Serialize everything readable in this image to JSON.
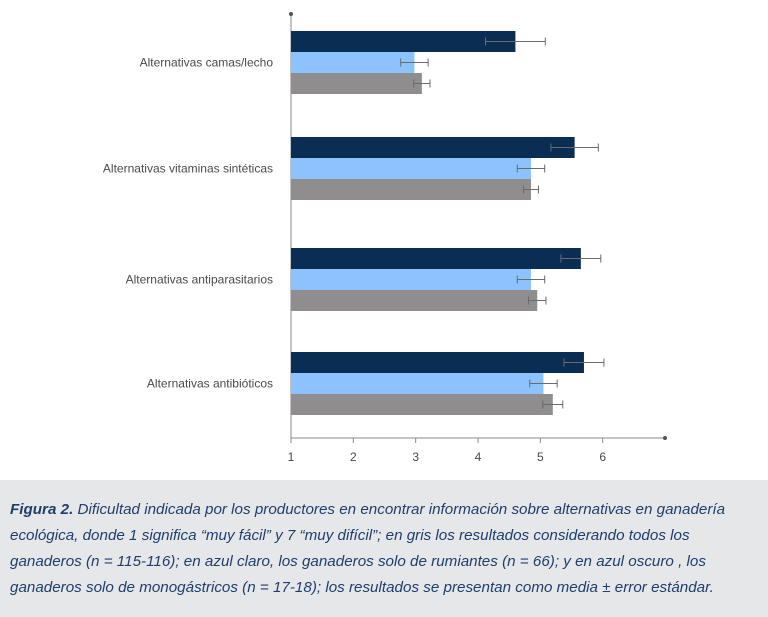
{
  "chart_data": {
    "type": "bar",
    "orientation": "horizontal",
    "title": "",
    "xlabel": "",
    "ylabel": "",
    "xlim": [
      1,
      7
    ],
    "x_ticks": [
      1,
      2,
      3,
      4,
      5,
      6
    ],
    "grid": false,
    "legend": "none",
    "categories": [
      "Alternativas camas/lecho",
      "Alternativas vitaminas sintéticas",
      "Alternativas antiparasitarios",
      "Alternativas antibióticos"
    ],
    "series": [
      {
        "color": "#0a2d54",
        "values": [
          4.6,
          5.55,
          5.65,
          5.7
        ],
        "errors": [
          0.48,
          0.38,
          0.32,
          0.32
        ]
      },
      {
        "color": "#8cc3ff",
        "values": [
          2.98,
          4.85,
          4.85,
          5.05
        ],
        "errors": [
          0.22,
          0.22,
          0.22,
          0.22
        ]
      },
      {
        "color": "#8f8d8e",
        "values": [
          3.1,
          4.85,
          4.95,
          5.2
        ],
        "errors": [
          0.13,
          0.12,
          0.14,
          0.16
        ]
      }
    ]
  },
  "caption": {
    "label": "Figura 2.",
    "text": "Dificultad indicada por los productores en encontrar información sobre alternativas en ganadería ecológica, donde 1 significa “muy fácil” y 7 “muy difícil”; en gris los resultados considerando todos los ganaderos (n = 115-116); en azul claro, los ganaderos solo de rumiantes (n = 66); y en azul oscuro , los ganaderos solo de monogástricos (n = 17-18); los resultados se presentan como media ± error estándar."
  }
}
